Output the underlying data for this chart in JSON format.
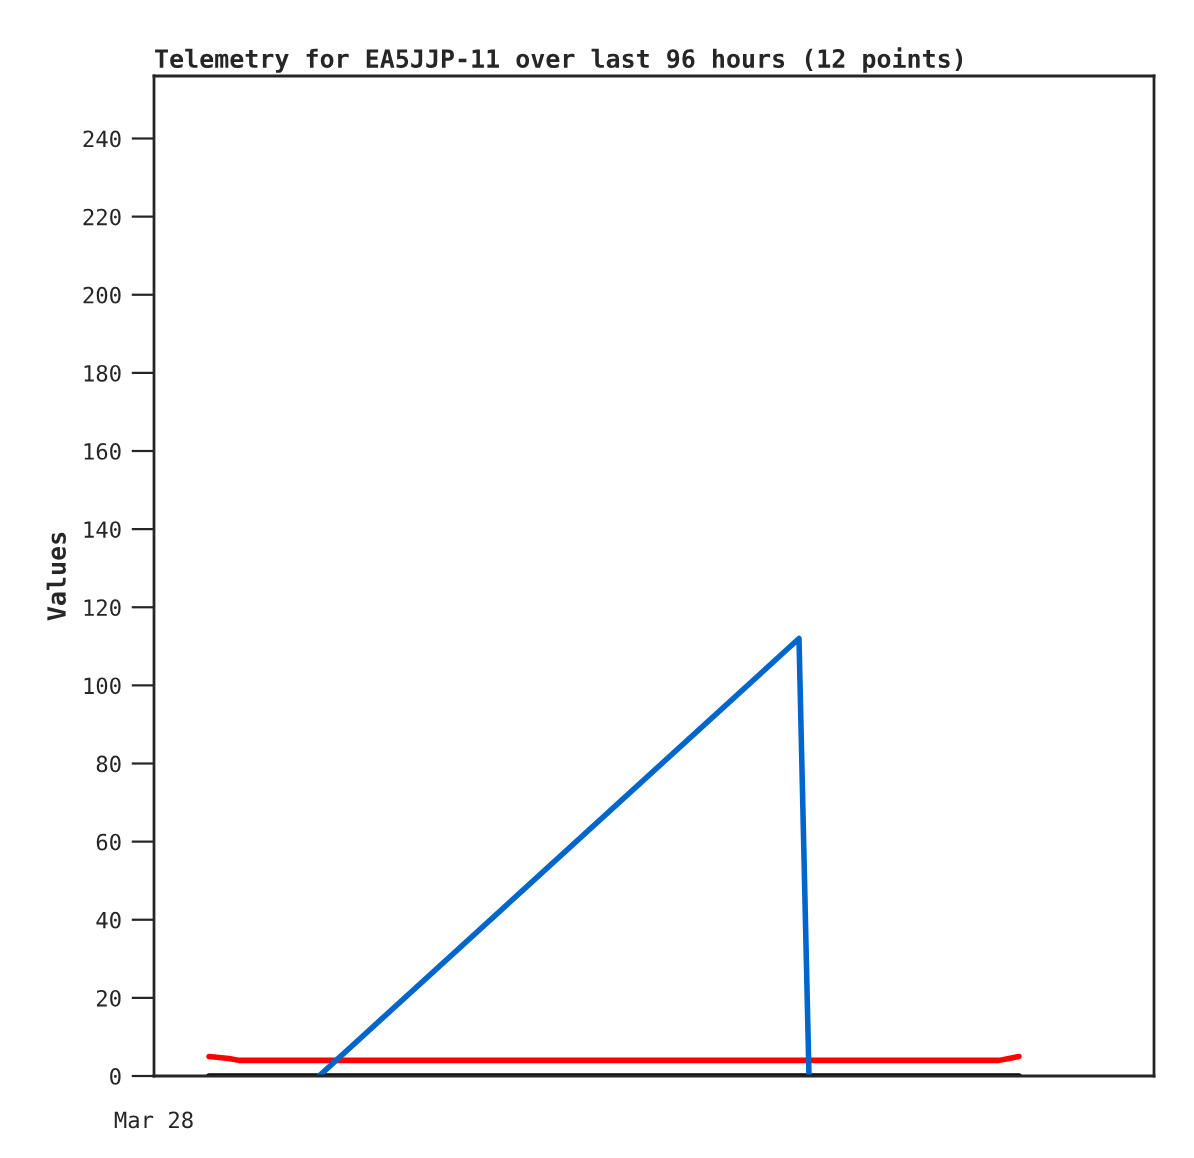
{
  "chart_data": {
    "type": "line",
    "title": "Telemetry for EA5JJP-11 over last 96 hours (12 points)",
    "ylabel": "Values",
    "annotations": [
      "Mar 28"
    ],
    "categories": [
      null,
      null,
      null,
      null,
      null,
      null,
      null,
      null,
      null,
      null,
      null,
      null,
      null,
      null,
      null,
      null,
      null,
      null,
      null,
      null,
      null,
      null,
      null,
      null,
      null,
      null,
      null,
      null,
      null,
      null,
      null,
      null,
      null,
      null,
      null,
      null,
      null,
      null,
      null,
      null,
      null,
      null,
      null,
      null,
      null,
      null,
      null,
      null,
      null,
      null,
      null,
      null,
      null,
      null,
      null,
      null,
      null,
      null,
      null,
      null,
      null,
      null,
      null,
      null,
      null,
      null,
      null,
      null,
      null,
      null,
      null,
      null,
      null,
      null,
      null,
      null,
      null,
      null,
      null,
      null,
      null,
      null,
      null,
      null,
      null,
      null,
      null,
      null,
      null,
      null,
      null,
      null,
      null,
      null,
      null,
      null,
      null,
      null,
      null,
      null
    ],
    "ylim": [
      0,
      256
    ],
    "yticks": [
      0,
      20,
      40,
      60,
      80,
      100,
      120,
      140,
      160,
      180,
      200,
      220,
      240
    ],
    "grid": false,
    "marker": "none",
    "line_style": "solid",
    "series": [
      {
        "color": "#000000",
        "values": [
          null,
          null,
          null,
          null,
          null,
          0,
          null,
          null,
          null,
          null,
          null,
          null,
          null,
          null,
          null,
          null,
          null,
          null,
          null,
          null,
          null,
          null,
          null,
          null,
          null,
          null,
          null,
          null,
          null,
          null,
          null,
          null,
          null,
          null,
          null,
          null,
          null,
          null,
          null,
          null,
          null,
          null,
          null,
          null,
          null,
          null,
          null,
          null,
          null,
          null,
          null,
          null,
          null,
          null,
          null,
          null,
          null,
          null,
          null,
          null,
          null,
          null,
          null,
          null,
          null,
          null,
          null,
          null,
          null,
          null,
          null,
          null,
          null,
          null,
          null,
          null,
          null,
          null,
          null,
          null,
          null,
          null,
          null,
          null,
          null,
          null,
          0,
          null,
          null,
          null,
          null,
          null,
          null,
          null,
          null,
          null,
          null,
          null,
          null,
          null
        ]
      },
      {
        "color": "#ff0000",
        "values": [
          null,
          null,
          null,
          null,
          null,
          5,
          null,
          4.5,
          4,
          null,
          null,
          null,
          null,
          null,
          null,
          null,
          4,
          null,
          null,
          null,
          null,
          null,
          null,
          null,
          null,
          null,
          null,
          null,
          null,
          null,
          null,
          null,
          null,
          null,
          null,
          null,
          null,
          null,
          null,
          null,
          null,
          null,
          null,
          null,
          null,
          null,
          null,
          null,
          null,
          null,
          null,
          null,
          null,
          null,
          null,
          null,
          null,
          null,
          null,
          null,
          null,
          null,
          null,
          null,
          4,
          4,
          null,
          null,
          null,
          null,
          null,
          null,
          null,
          null,
          null,
          null,
          null,
          null,
          null,
          null,
          null,
          null,
          null,
          null,
          4,
          4.5,
          5,
          null,
          null,
          null,
          null,
          null,
          null,
          null,
          null,
          null,
          null,
          null,
          null,
          null
        ]
      },
      {
        "color": "#0066cc",
        "values": [
          null,
          null,
          null,
          null,
          null,
          null,
          null,
          null,
          null,
          null,
          null,
          null,
          null,
          null,
          null,
          null,
          0,
          null,
          null,
          null,
          null,
          null,
          null,
          null,
          null,
          null,
          null,
          null,
          null,
          null,
          null,
          null,
          null,
          null,
          null,
          null,
          null,
          null,
          null,
          null,
          null,
          null,
          null,
          null,
          null,
          null,
          null,
          null,
          null,
          null,
          null,
          null,
          null,
          null,
          null,
          null,
          null,
          null,
          null,
          null,
          null,
          null,
          null,
          null,
          112,
          0,
          null,
          null,
          null,
          null,
          null,
          null,
          null,
          null,
          null,
          null,
          null,
          null,
          null,
          null,
          null,
          null,
          null,
          null,
          null,
          null,
          null,
          null,
          null,
          null,
          null,
          null,
          null,
          null,
          null,
          null,
          null,
          null,
          null,
          null
        ]
      }
    ]
  }
}
